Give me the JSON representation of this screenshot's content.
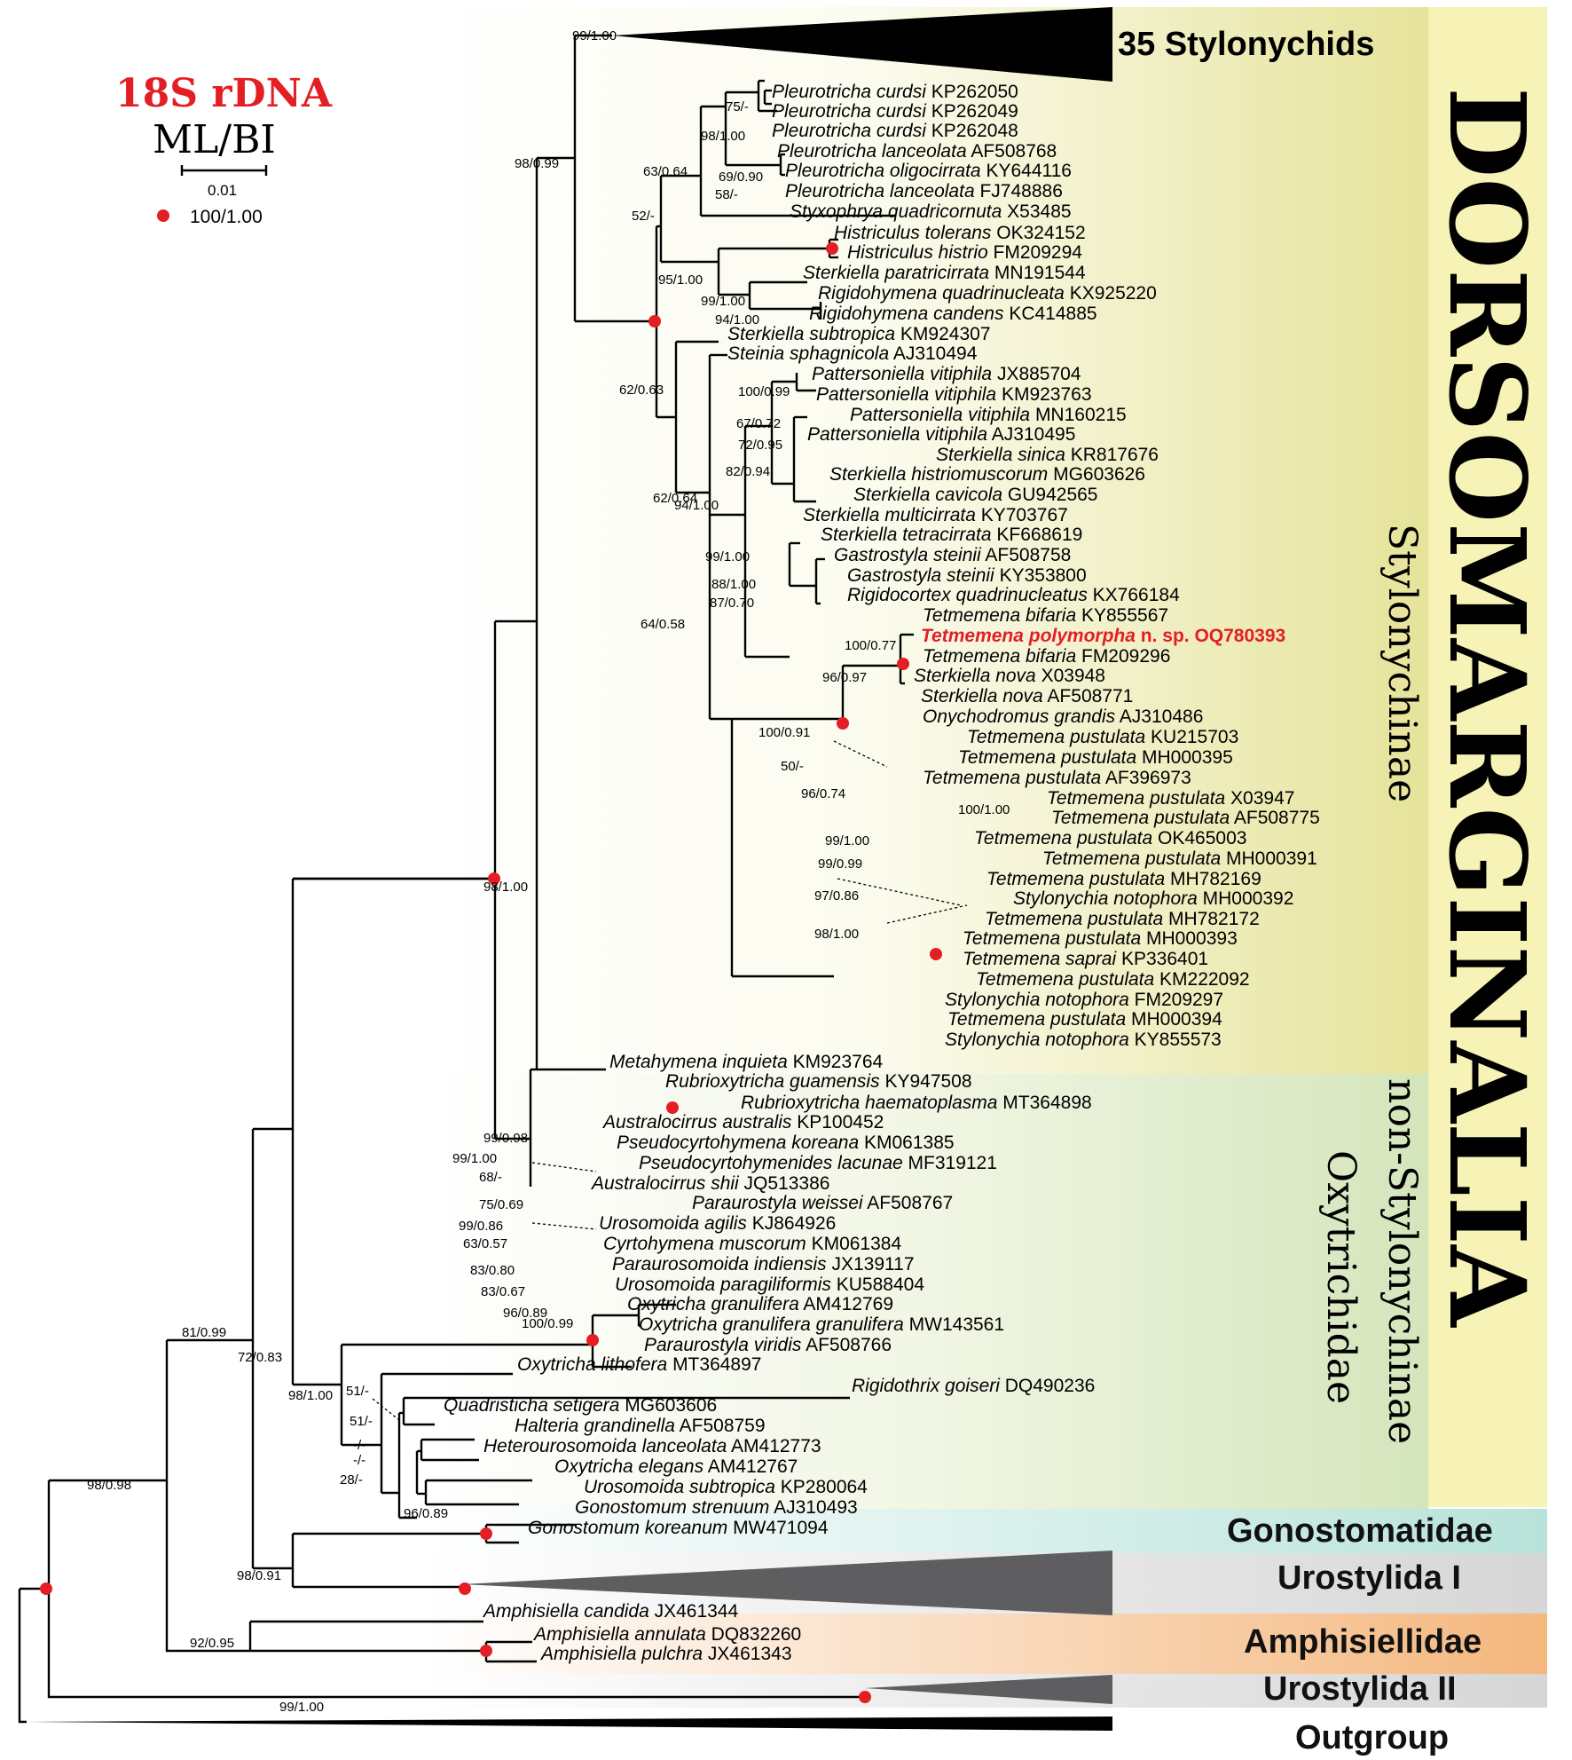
{
  "legend": {
    "title": "18S rDNA",
    "method": "ML/BI",
    "scale_value": "0.01",
    "dot_support": "100/1.00",
    "dot_color": "#e31e24"
  },
  "groups": {
    "order": "DORSOMARGINALIA",
    "subfamily": "Stylonychinae",
    "non_subfamily": "non-Stylonychinae",
    "family": "Oxytrichidae",
    "gonostomatidae": "Gonostomatidae",
    "urostylida_1": "Urostylida I",
    "amphisiellidae": "Amphisiellidae",
    "urostylida_2": "Urostylida II",
    "outgroup": "Outgroup",
    "collapsed_stylonychids": "35 Stylonychids"
  },
  "colors": {
    "highlight": "#e31e24",
    "dorsomarginalia_band": "#f7f2b5",
    "stylonychinae_bg": "#ece9a6",
    "oxytrichidae_bg": "#d8e6c0",
    "gonostomatidae_band": "#bfe6de",
    "urostylida_band": "#dddddd",
    "amphisiellidae_band": "#f6bf8a"
  },
  "taxa": [
    {
      "name": "Pleurotricha curdsi",
      "acc": "KP262050"
    },
    {
      "name": "Pleurotricha curdsi",
      "acc": "KP262049"
    },
    {
      "name": "Pleurotricha curdsi",
      "acc": "KP262048"
    },
    {
      "name": "Pleurotricha lanceolata",
      "acc": "AF508768"
    },
    {
      "name": "Pleurotricha oligocirrata",
      "acc": "KY644116"
    },
    {
      "name": "Pleurotricha lanceolata",
      "acc": "FJ748886"
    },
    {
      "name": "Styxophrya quadricornuta",
      "acc": "X53485"
    },
    {
      "name": "Histriculus tolerans",
      "acc": "OK324152"
    },
    {
      "name": "Histriculus histrio",
      "acc": "FM209294"
    },
    {
      "name": "Sterkiella paratricirrata",
      "acc": "MN191544"
    },
    {
      "name": "Rigidohymena quadrinucleata",
      "acc": "KX925220"
    },
    {
      "name": "Rigidohymena candens",
      "acc": "KC414885"
    },
    {
      "name": "Sterkiella subtropica",
      "acc": "KM924307"
    },
    {
      "name": "Steinia sphagnicola",
      "acc": "AJ310494"
    },
    {
      "name": "Pattersoniella vitiphila",
      "acc": "JX885704"
    },
    {
      "name": "Pattersoniella vitiphila",
      "acc": "KM923763"
    },
    {
      "name": "Pattersoniella vitiphila",
      "acc": "MN160215"
    },
    {
      "name": "Pattersoniella vitiphila",
      "acc": "AJ310495"
    },
    {
      "name": "Sterkiella sinica",
      "acc": "KR817676"
    },
    {
      "name": "Sterkiella histriomuscorum",
      "acc": "MG603626"
    },
    {
      "name": "Sterkiella cavicola",
      "acc": "GU942565"
    },
    {
      "name": "Sterkiella multicirrata",
      "acc": "KY703767"
    },
    {
      "name": "Sterkiella tetracirrata",
      "acc": "KF668619"
    },
    {
      "name": "Gastrostyla steinii",
      "acc": "AF508758"
    },
    {
      "name": "Gastrostyla steinii",
      "acc": "KY353800"
    },
    {
      "name": "Rigidocortex quadrinucleatus",
      "acc": "KX766184"
    },
    {
      "name": "Tetmemena bifaria",
      "acc": "KY855567"
    },
    {
      "name": "Tetmemena polymorpha",
      "acc": "n. sp. OQ780393"
    },
    {
      "name": "Tetmemena bifaria",
      "acc": "FM209296"
    },
    {
      "name": "Sterkiella nova",
      "acc": "X03948"
    },
    {
      "name": "Sterkiella nova",
      "acc": "AF508771"
    },
    {
      "name": "Onychodromus grandis",
      "acc": "AJ310486"
    },
    {
      "name": "Tetmemena pustulata",
      "acc": "KU215703"
    },
    {
      "name": "Tetmemena pustulata",
      "acc": "MH000395"
    },
    {
      "name": "Tetmemena pustulata",
      "acc": "AF396973"
    },
    {
      "name": "Tetmemena pustulata",
      "acc": "X03947"
    },
    {
      "name": "Tetmemena pustulata",
      "acc": "AF508775"
    },
    {
      "name": "Tetmemena pustulata",
      "acc": "OK465003"
    },
    {
      "name": "Tetmemena pustulata",
      "acc": "MH000391"
    },
    {
      "name": "Tetmemena pustulata",
      "acc": "MH782169"
    },
    {
      "name": "Stylonychia notophora",
      "acc": "MH000392"
    },
    {
      "name": "Tetmemena pustulata",
      "acc": "MH782172"
    },
    {
      "name": "Tetmemena pustulata",
      "acc": "MH000393"
    },
    {
      "name": "Tetmemena saprai",
      "acc": "KP336401"
    },
    {
      "name": "Tetmemena pustulata",
      "acc": "KM222092"
    },
    {
      "name": "Stylonychia notophora",
      "acc": "FM209297"
    },
    {
      "name": "Tetmemena pustulata",
      "acc": "MH000394"
    },
    {
      "name": "Stylonychia notophora",
      "acc": "KY855573"
    },
    {
      "name": "Metahymena inquieta",
      "acc": "KM923764"
    },
    {
      "name": "Rubrioxytricha guamensis",
      "acc": "KY947508"
    },
    {
      "name": "Rubrioxytricha haematoplasma",
      "acc": "MT364898"
    },
    {
      "name": "Australocirrus australis",
      "acc": "KP100452"
    },
    {
      "name": "Pseudocyrtohymena koreana",
      "acc": "KM061385"
    },
    {
      "name": "Pseudocyrtohymenides lacunae",
      "acc": "MF319121"
    },
    {
      "name": "Australocirrus shii",
      "acc": "JQ513386"
    },
    {
      "name": "Paraurostyla weissei",
      "acc": "AF508767"
    },
    {
      "name": "Urosomoida agilis",
      "acc": "KJ864926"
    },
    {
      "name": "Cyrtohymena muscorum",
      "acc": "KM061384"
    },
    {
      "name": "Paraurosomoida indiensis",
      "acc": "JX139117"
    },
    {
      "name": "Urosomoida paragiliformis",
      "acc": "KU588404"
    },
    {
      "name": "Oxytricha granulifera",
      "acc": "AM412769"
    },
    {
      "name": "Oxytricha granulifera granulifera",
      "acc": "MW143561"
    },
    {
      "name": "Paraurostyla viridis",
      "acc": "AF508766"
    },
    {
      "name": "Oxytricha lithofera",
      "acc": "MT364897"
    },
    {
      "name": "Rigidothrix goiseri",
      "acc": "DQ490236"
    },
    {
      "name": "Quadristicha setigera",
      "acc": "MG603606"
    },
    {
      "name": "Halteria grandinella",
      "acc": "AF508759"
    },
    {
      "name": "Heterourosomoida lanceolata",
      "acc": "AM412773"
    },
    {
      "name": "Oxytricha elegans",
      "acc": "AM412767"
    },
    {
      "name": "Urosomoida subtropica",
      "acc": "KP280064"
    },
    {
      "name": "Gonostomum strenuum",
      "acc": "AJ310493"
    },
    {
      "name": "Gonostomum koreanum",
      "acc": "MW471094"
    },
    {
      "name": "Amphisiella candida",
      "acc": "JX461344"
    },
    {
      "name": "Amphisiella annulata",
      "acc": "DQ832260"
    },
    {
      "name": "Amphisiella pulchra",
      "acc": "JX461343"
    }
  ],
  "supports": [
    "99/1.00",
    "75/-",
    "98/1.00",
    "69/0.90",
    "58/-",
    "63/0.64",
    "52/-",
    "98/0.99",
    "95/1.00",
    "99/1.00",
    "94/1.00",
    "62/0.63",
    "100/0.99",
    "67/0.72",
    "72/0.95",
    "82/0.94",
    "62/0.64",
    "94/1.00",
    "99/1.00",
    "88/1.00",
    "87/0.70",
    "64/0.58",
    "100/0.77",
    "96/0.97",
    "100/0.91",
    "50/-",
    "96/0.74",
    "100/1.00",
    "99/1.00",
    "99/0.99",
    "97/0.86",
    "98/1.00",
    "98/1.00",
    "99/0.98",
    "99/1.00",
    "68/-",
    "75/0.69",
    "99/0.86",
    "63/0.57",
    "83/0.80",
    "83/0.67",
    "96/0.89",
    "100/0.99",
    "72/0.83",
    "81/0.99",
    "51/-",
    "98/1.00",
    "51/-",
    "-/-",
    "-/-",
    "28/-",
    "96/0.89",
    "98/0.98",
    "98/0.91",
    "92/0.95",
    "99/1.00"
  ]
}
